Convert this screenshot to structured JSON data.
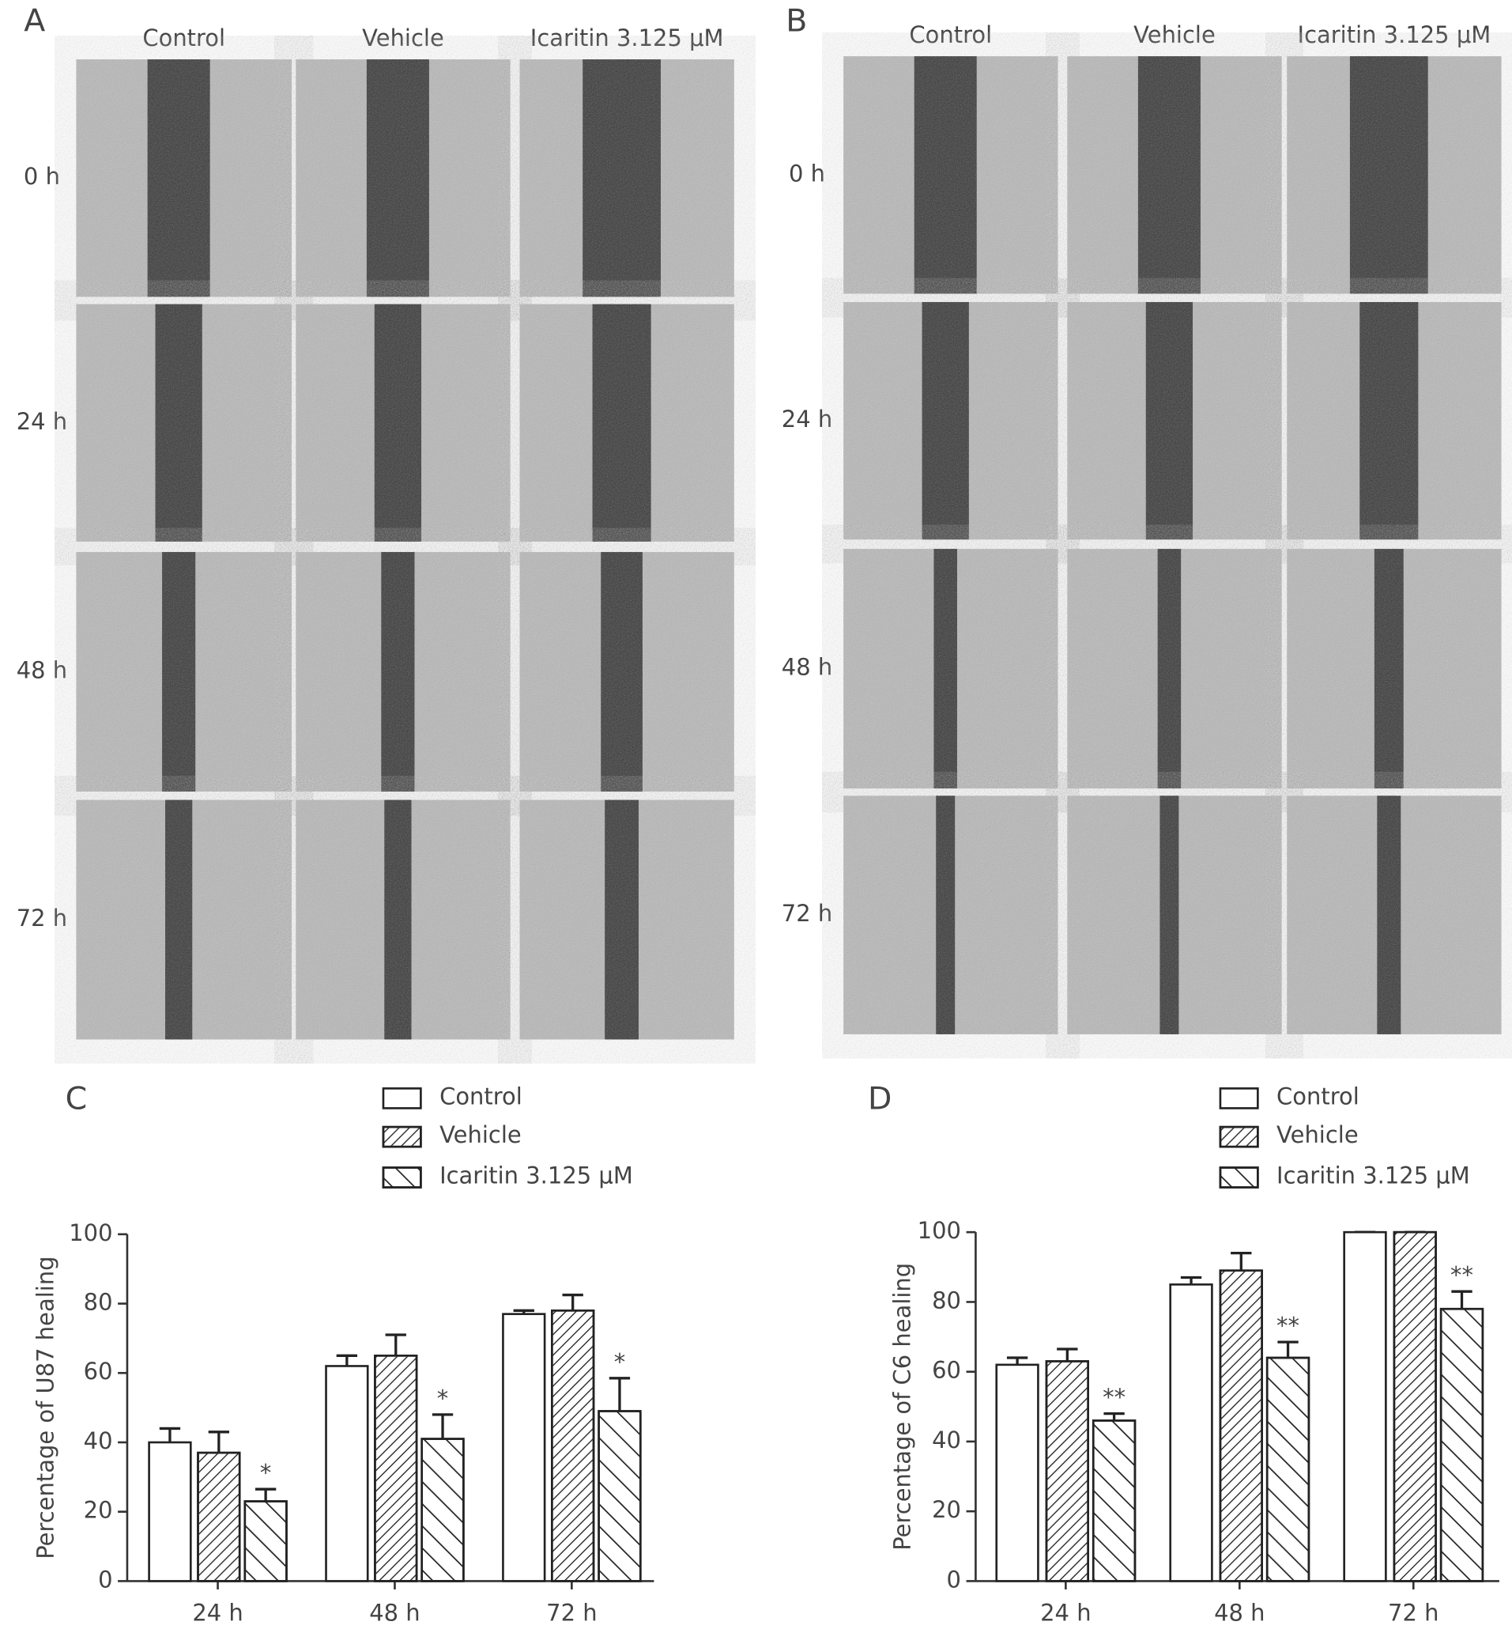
{
  "image_panels": [
    {
      "label": "A",
      "columns": [
        "Control",
        "Vehicle",
        "Icaritin 3.125 μM"
      ],
      "rows": [
        "0 h",
        "24 h",
        "48 h",
        "72 h"
      ]
    },
    {
      "label": "B",
      "columns": [
        "Control",
        "Vehicle",
        "Icaritin 3.125 μM"
      ],
      "rows": [
        "0 h",
        "24 h",
        "48 h",
        "72 h"
      ]
    }
  ],
  "chart_data": [
    {
      "type": "bar",
      "panel_label": "C",
      "y_label": "Percentage of U87 healing",
      "categories": [
        "24 h",
        "48 h",
        "72 h"
      ],
      "series": [
        {
          "name": "Control",
          "color": "#ffffff",
          "pattern": "none",
          "values": [
            40,
            62,
            77
          ],
          "errors": [
            4,
            3,
            1
          ]
        },
        {
          "name": "Vehicle",
          "color": "#ffffff",
          "pattern": "dense-hatch",
          "values": [
            37,
            65,
            78
          ],
          "errors": [
            6,
            6,
            4.5
          ]
        },
        {
          "name": "Icaritin 3.125 μM",
          "color": "#ffffff",
          "pattern": "sparse-hatch",
          "values": [
            23,
            41,
            49
          ],
          "errors": [
            3.5,
            7,
            9.5
          ],
          "annotations": [
            "*",
            "*",
            "*"
          ]
        }
      ],
      "ylim": [
        0,
        100
      ],
      "yticks": [
        0,
        20,
        40,
        60,
        80,
        100
      ]
    },
    {
      "type": "bar",
      "panel_label": "D",
      "y_label": "Percentage of C6 healing",
      "categories": [
        "24 h",
        "48 h",
        "72 h"
      ],
      "series": [
        {
          "name": "Control",
          "color": "#ffffff",
          "pattern": "none",
          "values": [
            62,
            85,
            100
          ],
          "errors": [
            2,
            2,
            0
          ]
        },
        {
          "name": "Vehicle",
          "color": "#ffffff",
          "pattern": "dense-hatch",
          "values": [
            63,
            89,
            100
          ],
          "errors": [
            3.5,
            5,
            0
          ]
        },
        {
          "name": "Icaritin 3.125 μM",
          "color": "#ffffff",
          "pattern": "sparse-hatch",
          "values": [
            46,
            64,
            78
          ],
          "errors": [
            2,
            4.5,
            5
          ],
          "annotations": [
            "**",
            "**",
            "**"
          ]
        }
      ],
      "ylim": [
        0,
        100
      ],
      "yticks": [
        0,
        20,
        40,
        60,
        80,
        100
      ]
    }
  ]
}
